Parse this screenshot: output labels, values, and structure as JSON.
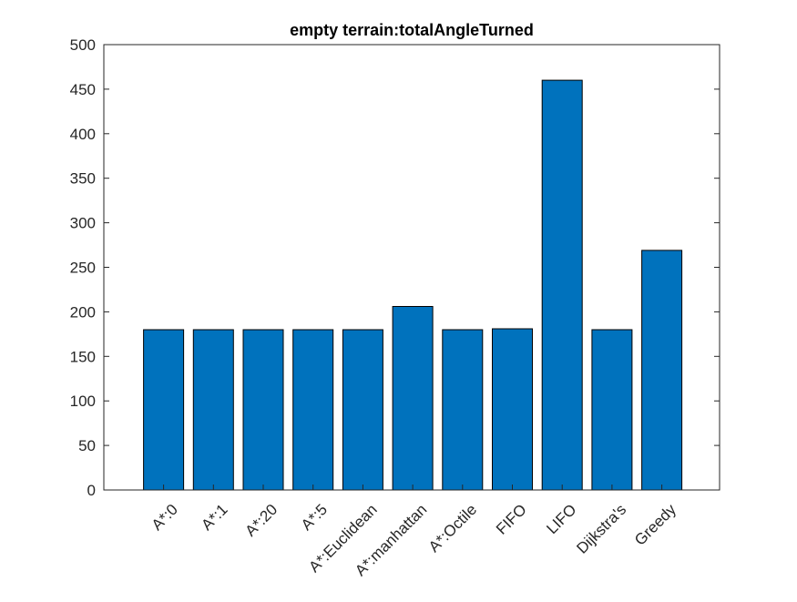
{
  "chart_data": {
    "type": "bar",
    "title": "empty terrain:totalAngleTurned",
    "xlabel": "",
    "ylabel": "",
    "categories": [
      "A*:0",
      "A*:1",
      "A*:20",
      "A*:5",
      "A*:Euclidean",
      "A*:manhattan",
      "A*:Octile",
      "FIFO",
      "LIFO",
      "Dijkstra's",
      "Greedy"
    ],
    "values": [
      180,
      180,
      180,
      180,
      180,
      206,
      180,
      181,
      460,
      180,
      269
    ],
    "ylim": [
      0,
      500
    ],
    "yticks": [
      0,
      50,
      100,
      150,
      200,
      250,
      300,
      350,
      400,
      450,
      500
    ],
    "grid": false,
    "legend": "none",
    "bar_color": "#0072BD",
    "bar_edge_color": "#000000"
  }
}
